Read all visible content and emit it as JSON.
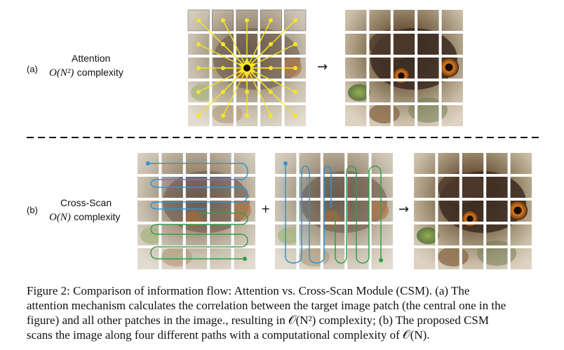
{
  "part_a": {
    "marker": "(a)",
    "title": "Attention",
    "complexity_math": "O(N²)",
    "complexity_word": "complexity"
  },
  "part_b": {
    "marker": "(b)",
    "title": "Cross-Scan",
    "complexity_math": "O(N)",
    "complexity_word": "complexity"
  },
  "symbols": {
    "arrow": "→",
    "plus": "+"
  },
  "colors": {
    "attention_lines": "#f5e623",
    "scan_blue": "#2f95d6",
    "scan_green": "#2fa04e",
    "dashed_rule": "#111111",
    "patch_gap": "#ffffff"
  },
  "caption": {
    "line1": "Figure 2: Comparison of information flow: Attention vs. Cross-Scan Module (CSM). (a) The",
    "line2": "attention mechanism calculates the correlation between the target image patch (the central one in the",
    "line3": "figure) and all other patches in the image., resulting in 𝒪(N²) complexity; (b) The proposed CSM",
    "line4": "scans the image along four different paths with a computational complexity of 𝒪(N)."
  }
}
